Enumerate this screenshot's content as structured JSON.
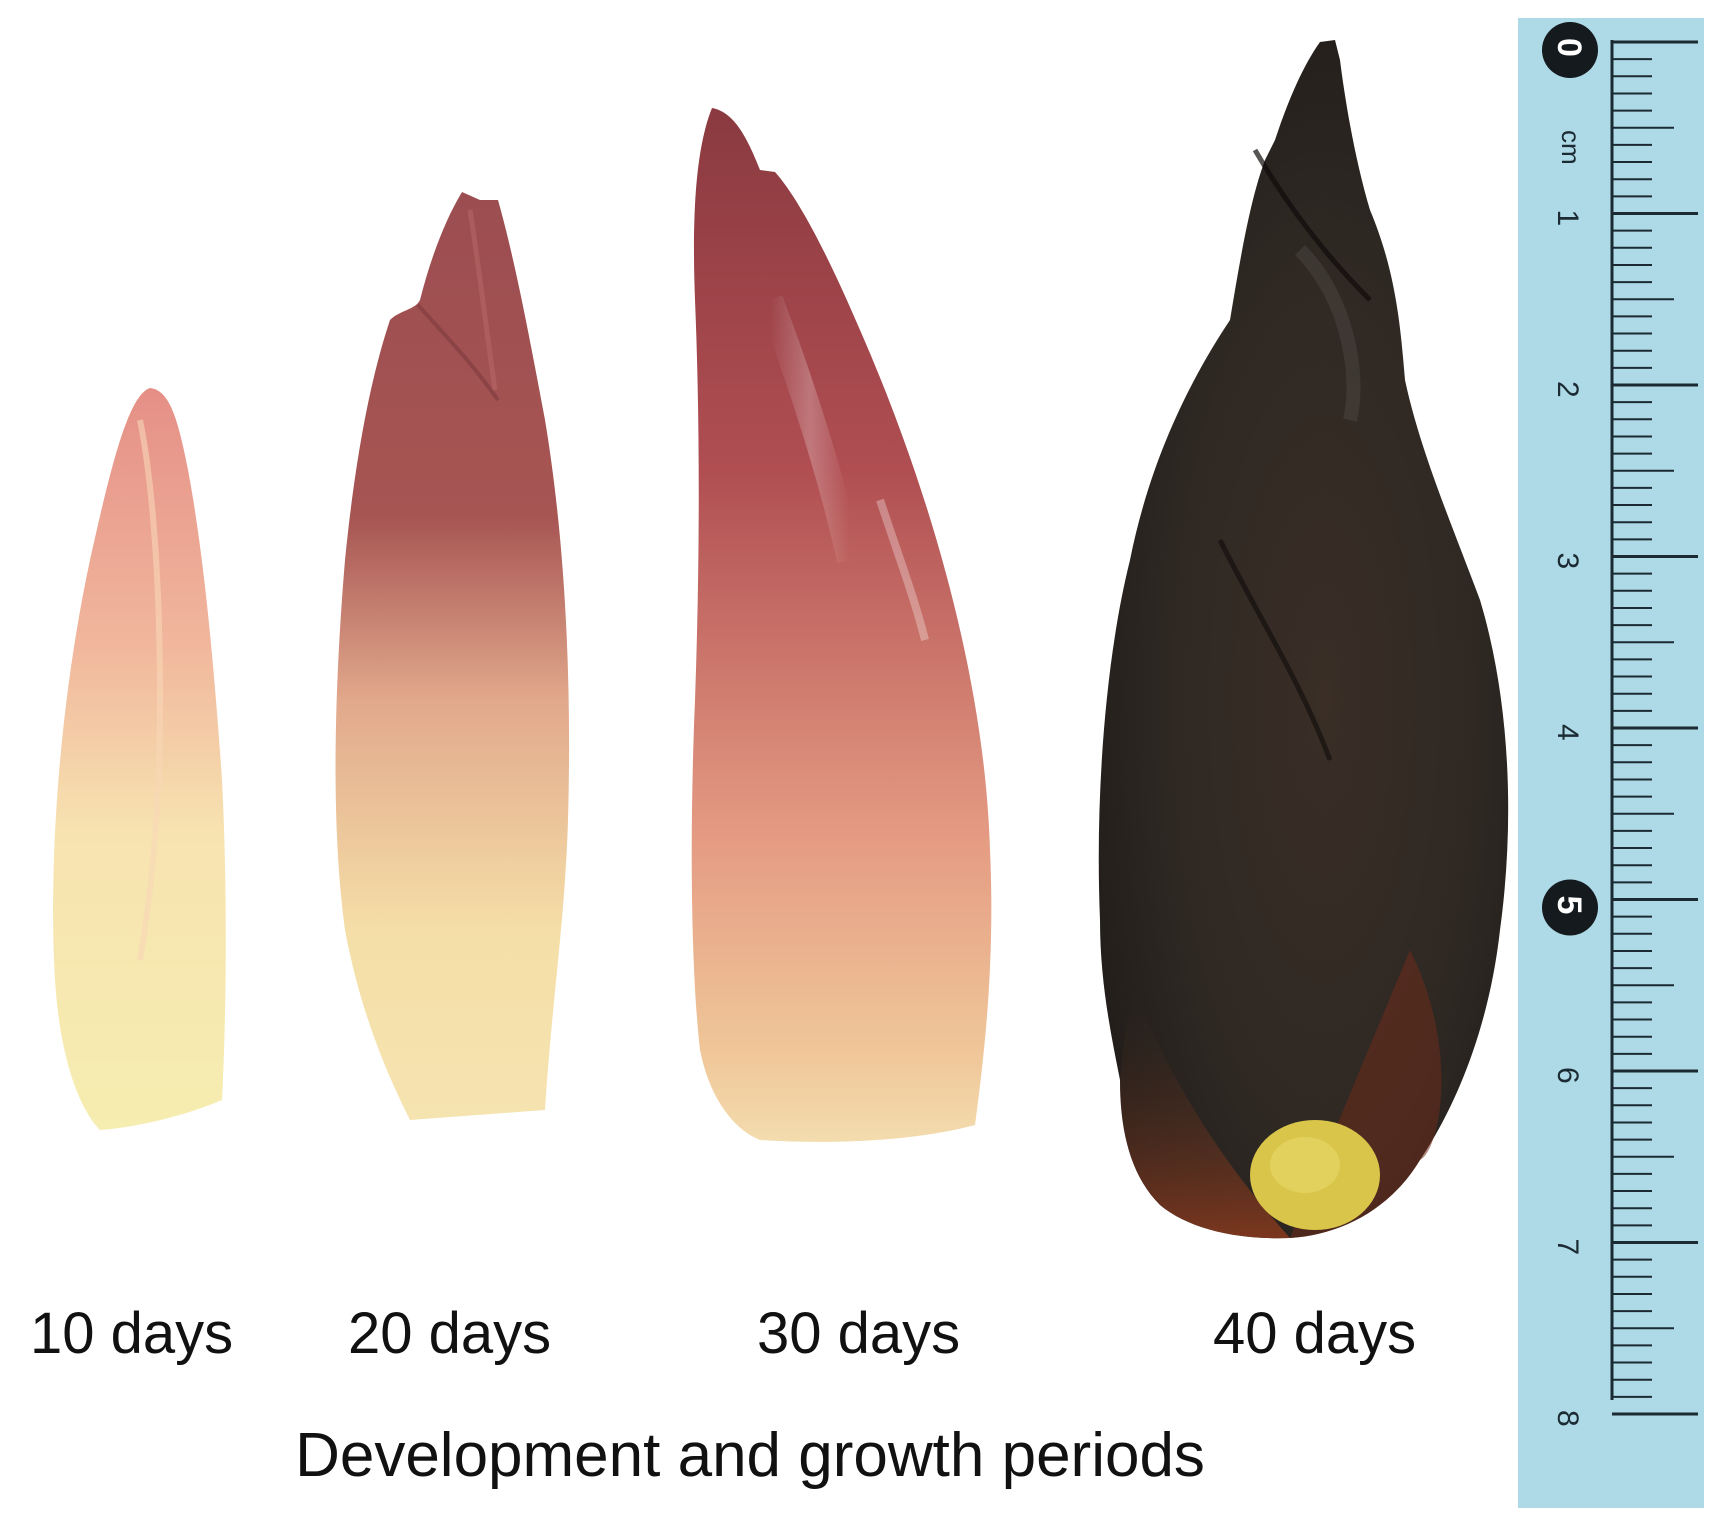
{
  "figure": {
    "stages": [
      {
        "label": "10 days"
      },
      {
        "label": "20 days"
      },
      {
        "label": "30 days"
      },
      {
        "label": "40 days"
      }
    ],
    "caption": "Development and growth periods",
    "ruler": {
      "unit": "cm",
      "major_labels": [
        "0",
        "1",
        "2",
        "3",
        "4",
        "5",
        "6",
        "7",
        "8"
      ],
      "range_cm": [
        0,
        8
      ],
      "color": "#aed9e6"
    },
    "colors": {
      "stage_10_tip": "#e8a08c",
      "stage_10_base": "#f6edb0",
      "stage_20_tip": "#9a4b4b",
      "stage_20_base": "#f5e1a6",
      "stage_30_tip": "#8a3a40",
      "stage_30_base": "#f0cfa0",
      "stage_40_body": "#2b2621",
      "stage_40_base_spot": "#dcc94a"
    }
  }
}
